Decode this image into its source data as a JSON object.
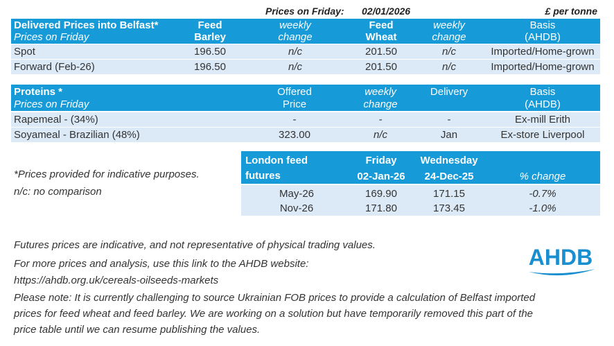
{
  "header": {
    "prices_label": "Prices on Friday:",
    "date": "02/01/2026",
    "unit": "£ per tonne"
  },
  "delivered": {
    "title": "Delivered Prices into Belfast*",
    "subtitle": "Prices on Friday",
    "columns": [
      [
        "Feed",
        "Barley"
      ],
      [
        "weekly",
        "change"
      ],
      [
        "Feed",
        "Wheat"
      ],
      [
        "weekly",
        "change"
      ],
      [
        "Basis",
        "(AHDB)"
      ]
    ],
    "rows": [
      [
        "Spot",
        "196.50",
        "n/c",
        "201.50",
        "n/c",
        "Imported/Home-grown"
      ],
      [
        "Forward (Feb-26)",
        "196.50",
        "n/c",
        "201.50",
        "n/c",
        "Imported/Home-grown"
      ]
    ]
  },
  "proteins": {
    "title": "Proteins *",
    "subtitle": "Prices on Friday",
    "columns": [
      [
        "Offered",
        "Price"
      ],
      [
        "weekly",
        "change"
      ],
      [
        "Delivery"
      ],
      [
        "Basis",
        "(AHDB)"
      ]
    ],
    "rows": [
      [
        "Rapemeal - (34%)",
        "-",
        "-",
        "-",
        "Ex-mill Erith"
      ],
      [
        "Soyameal - Brazilian (48%)",
        "323.00",
        "n/c",
        "Jan",
        "Ex-store Liverpool"
      ]
    ]
  },
  "futures": {
    "title": [
      "London feed",
      "futures"
    ],
    "columns": [
      [
        "Friday",
        "02-Jan-26"
      ],
      [
        "Wednesday",
        "24-Dec-25"
      ],
      [
        "% change"
      ]
    ],
    "rows": [
      [
        "May-26",
        "169.90",
        "171.15",
        "-0.7%"
      ],
      [
        "Nov-26",
        "171.80",
        "173.45",
        "-1.0%"
      ]
    ]
  },
  "notes": [
    "*Prices provided for indicative purposes.",
    "n/c: no comparison"
  ],
  "footer": [
    "Futures prices are indicative, and not representative of physical trading values.",
    "For more prices and analysis, use this link to the AHDB website:",
    "https://ahdb.org.uk/cereals-oilseeds-markets",
    "Please note: It is currently challenging to source Ukrainian FOB prices to provide a calculation of Belfast imported",
    "prices for feed wheat and feed barley. We are working on a solution but have temporarily removed this part of the",
    "price table until we can resume publishing the values."
  ],
  "logo": "AHDB"
}
